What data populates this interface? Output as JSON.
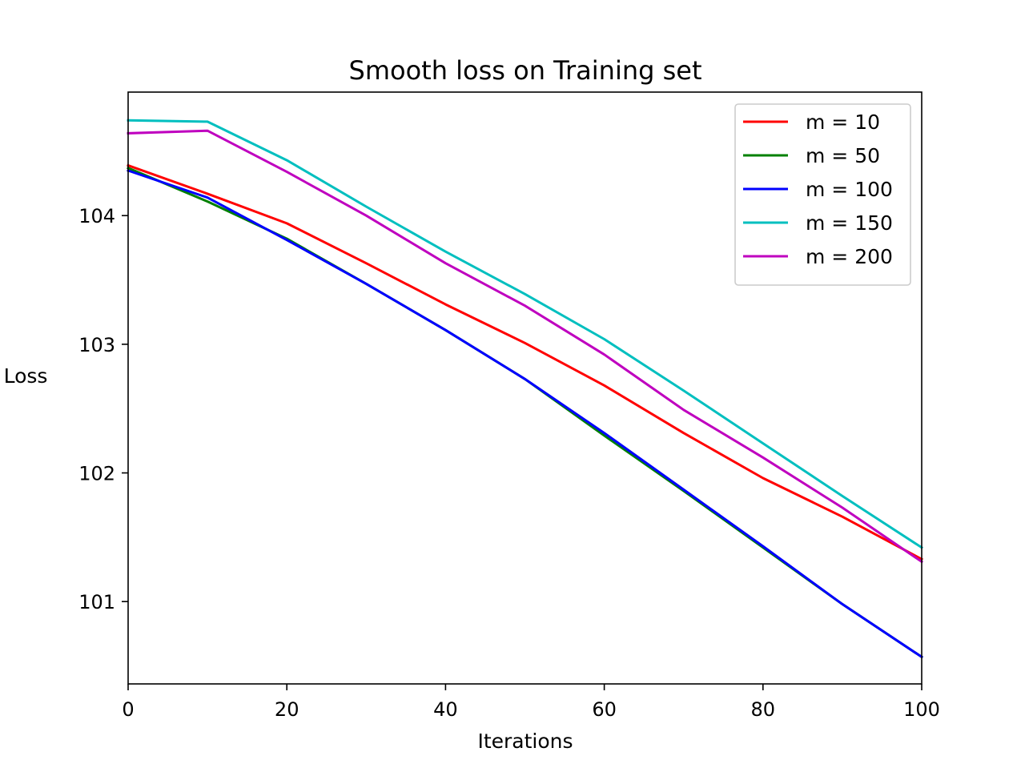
{
  "chart_data": {
    "type": "line",
    "title": "Smooth loss on Training set",
    "xlabel": "Iterations",
    "ylabel": "Loss",
    "xlim": [
      0,
      100
    ],
    "ylim": [
      100.36,
      104.96
    ],
    "xticks": [
      0,
      20,
      40,
      60,
      80,
      100
    ],
    "xtick_labels": [
      "0",
      "20",
      "40",
      "60",
      "80",
      "100"
    ],
    "yticks": [
      101,
      102,
      103,
      104
    ],
    "ytick_labels": [
      "101",
      "102",
      "103",
      "104"
    ],
    "grid": false,
    "legend_position": "top-right",
    "x": [
      0,
      10,
      20,
      30,
      40,
      50,
      60,
      70,
      80,
      90,
      100
    ],
    "series": [
      {
        "name": "m = 10",
        "color": "#ff0000",
        "values": [
          104.39,
          104.17,
          103.94,
          103.63,
          103.31,
          103.01,
          102.68,
          102.31,
          101.96,
          101.66,
          101.33
        ]
      },
      {
        "name": "m = 50",
        "color": "#008000",
        "values": [
          104.37,
          104.11,
          103.82,
          103.47,
          103.11,
          102.73,
          102.29,
          101.86,
          101.42,
          100.98,
          100.57
        ]
      },
      {
        "name": "m = 100",
        "color": "#0000ff",
        "values": [
          104.35,
          104.14,
          103.81,
          103.47,
          103.11,
          102.73,
          102.31,
          101.87,
          101.43,
          100.98,
          100.57
        ]
      },
      {
        "name": "m = 150",
        "color": "#00bfbf",
        "values": [
          104.74,
          104.73,
          104.43,
          104.07,
          103.72,
          103.39,
          103.04,
          102.64,
          102.23,
          101.82,
          101.42
        ]
      },
      {
        "name": "m = 200",
        "color": "#bf00bf",
        "values": [
          104.64,
          104.66,
          104.34,
          104.0,
          103.63,
          103.3,
          102.92,
          102.49,
          102.12,
          101.73,
          101.31
        ]
      }
    ]
  }
}
